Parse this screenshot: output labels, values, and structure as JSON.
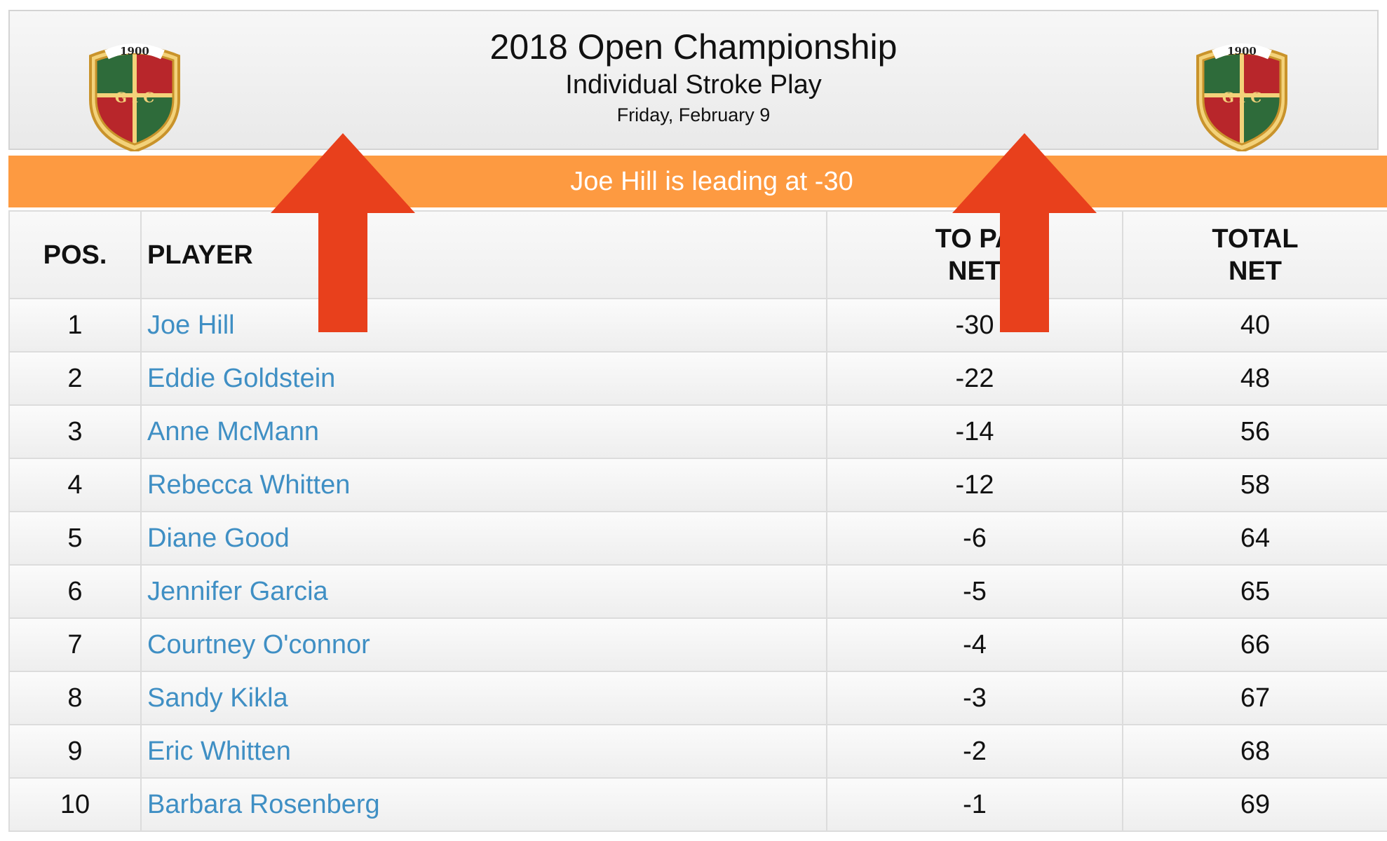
{
  "header": {
    "title": "2018 Open Championship",
    "subtitle": "Individual Stroke Play",
    "date": "Friday, February 9",
    "crest_text": "1900",
    "crest_monogram": "G I C"
  },
  "banner": {
    "text": "Joe Hill is leading at -30"
  },
  "table": {
    "columns": {
      "pos": "POS.",
      "player": "PLAYER",
      "to_par_net_line1": "TO PA",
      "to_par_net_line2": "NET",
      "total_net_line1": "TOTAL",
      "total_net_line2": "NET"
    },
    "rows": [
      {
        "pos": "1",
        "player": "Joe Hill",
        "to_par": "-30",
        "total": "40"
      },
      {
        "pos": "2",
        "player": "Eddie Goldstein",
        "to_par": "-22",
        "total": "48"
      },
      {
        "pos": "3",
        "player": "Anne McMann",
        "to_par": "-14",
        "total": "56"
      },
      {
        "pos": "4",
        "player": "Rebecca Whitten",
        "to_par": "-12",
        "total": "58"
      },
      {
        "pos": "5",
        "player": "Diane Good",
        "to_par": "-6",
        "total": "64"
      },
      {
        "pos": "6",
        "player": "Jennifer Garcia",
        "to_par": "-5",
        "total": "65"
      },
      {
        "pos": "7",
        "player": "Courtney O'connor",
        "to_par": "-4",
        "total": "66"
      },
      {
        "pos": "8",
        "player": "Sandy Kikla",
        "to_par": "-3",
        "total": "67"
      },
      {
        "pos": "9",
        "player": "Eric Whitten",
        "to_par": "-2",
        "total": "68"
      },
      {
        "pos": "10",
        "player": "Barbara Rosenberg",
        "to_par": "-1",
        "total": "69"
      }
    ]
  },
  "colors": {
    "banner": "#fd9a41",
    "arrow": "#e8401c",
    "link": "#3f8fc4",
    "crest_green": "#2e6b3a",
    "crest_red": "#b8262b",
    "crest_gold": "#e9b43a"
  },
  "icons": {
    "crest": "club-crest-icon",
    "arrow": "up-arrow-icon"
  }
}
